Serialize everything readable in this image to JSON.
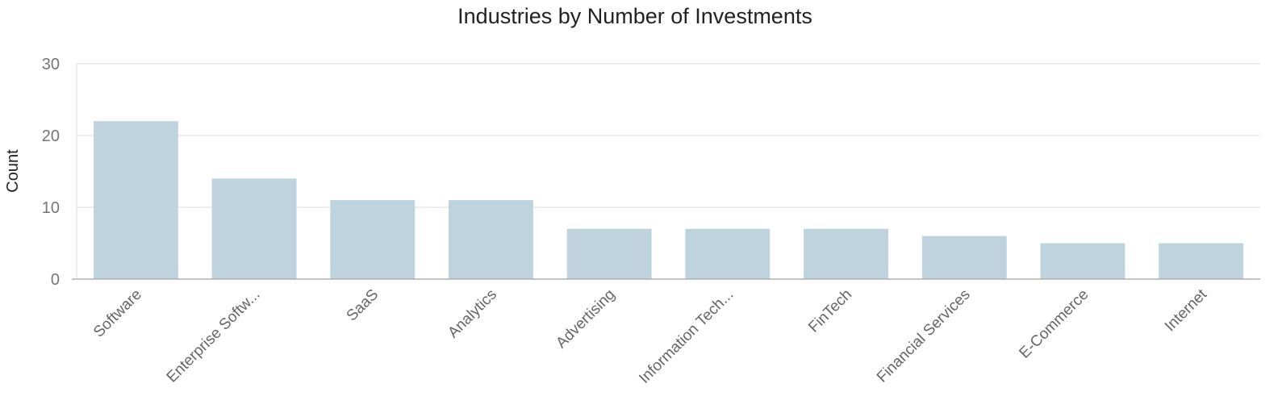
{
  "chart_data": {
    "type": "bar",
    "title": "Industries by Number of Investments",
    "xlabel": "",
    "ylabel": "Count",
    "categories": [
      "Software",
      "Enterprise Softw...",
      "SaaS",
      "Analytics",
      "Advertising",
      "Information Tech...",
      "FinTech",
      "Financial Services",
      "E-Commerce",
      "Internet"
    ],
    "values": [
      22,
      14,
      11,
      11,
      7,
      7,
      7,
      6,
      5,
      5
    ],
    "ylim": [
      0,
      30
    ],
    "yticks": [
      0,
      10,
      20,
      30
    ],
    "grid": true,
    "legend": "none",
    "colors": {
      "bar": "#bfd3df",
      "grid": "#e3e3e3",
      "axis": "#b0b0b0"
    }
  }
}
